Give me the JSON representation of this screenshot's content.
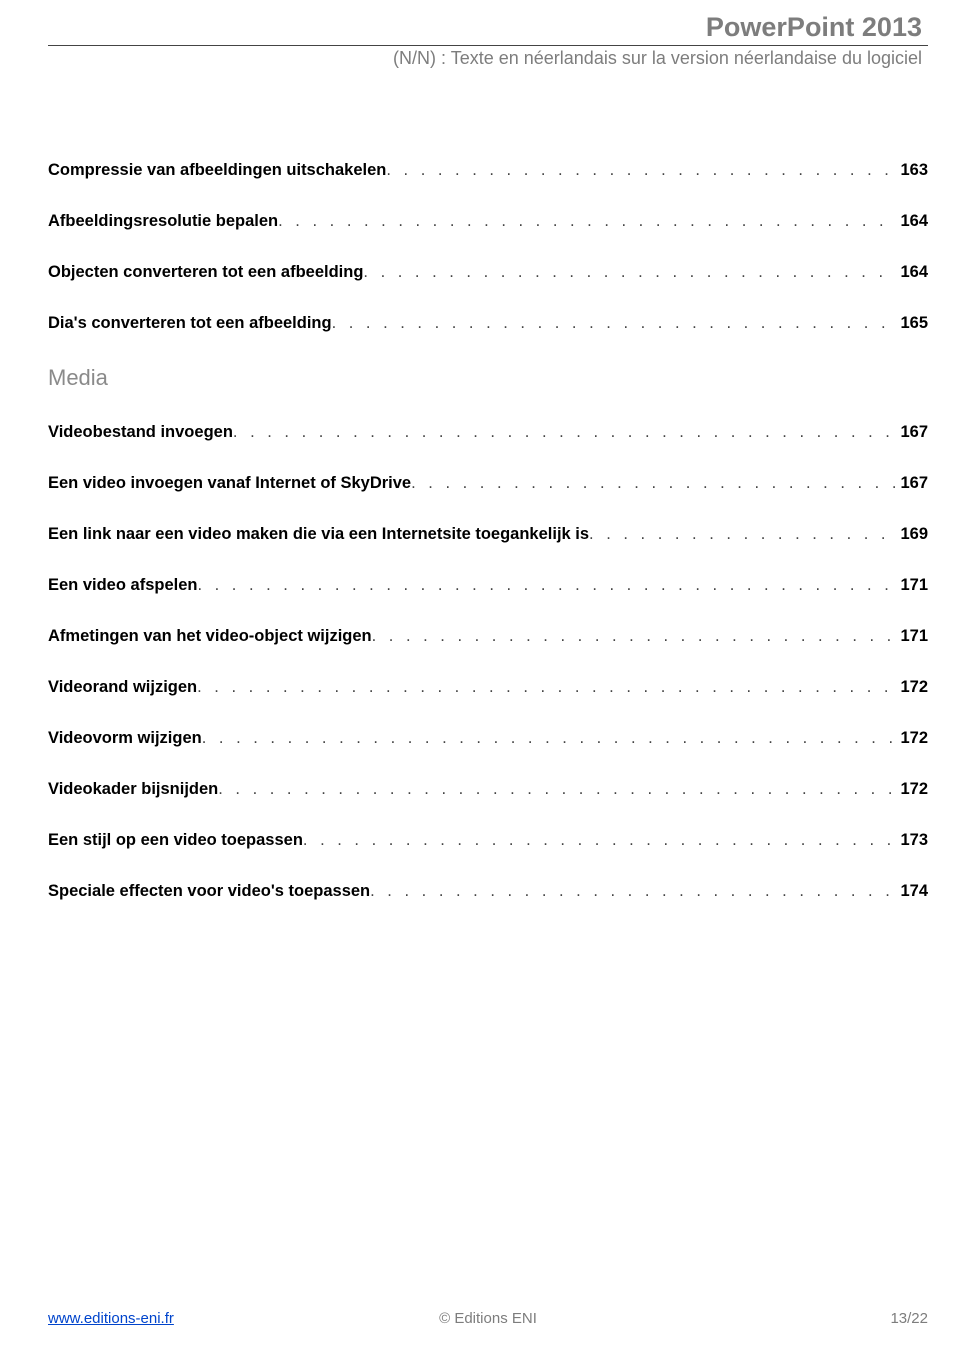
{
  "header": {
    "title": "PowerPoint 2013",
    "subtitle": "(N/N) : Texte en néerlandais sur la version néerlandaise du logiciel"
  },
  "sections": [
    {
      "heading": null,
      "entries": [
        {
          "title": "Compressie van afbeeldingen uitschakelen",
          "page": "163"
        },
        {
          "title": "Afbeeldingsresolutie bepalen",
          "page": "164"
        },
        {
          "title": "Objecten converteren tot een afbeelding",
          "page": "164"
        },
        {
          "title": "Dia's converteren tot een afbeelding",
          "page": "165"
        }
      ]
    },
    {
      "heading": "Media",
      "entries": [
        {
          "title": "Videobestand invoegen",
          "page": "167"
        },
        {
          "title": "Een video invoegen vanaf Internet of SkyDrive",
          "page": "167"
        },
        {
          "title": "Een link naar een video maken die via een Internetsite toegankelijk is",
          "page": "169"
        },
        {
          "title": "Een video afspelen",
          "page": "171"
        },
        {
          "title": "Afmetingen van het video-object wijzigen",
          "page": "171"
        },
        {
          "title": "Videorand wijzigen",
          "page": "172"
        },
        {
          "title": "Videovorm wijzigen",
          "page": "172"
        },
        {
          "title": "Videokader bijsnijden",
          "page": "172"
        },
        {
          "title": "Een stijl op een video toepassen",
          "page": "173"
        },
        {
          "title": "Speciale effecten voor video's toepassen",
          "page": "174"
        }
      ]
    }
  ],
  "footer": {
    "left": "www.editions-eni.fr",
    "center": "© Editions ENI",
    "right": "13/22"
  },
  "dots": ". . . . . . . . . . . . . . . . . . . . . . . . . . . . . . . . . . . . . . . . . . . . . . . . . . . . . . . . . . . . . . . . . . . . . . . . . . . . . . . . . . . . . . . . . . . . . . . . . . . . . . . . . . . . . . . . . . . . . . . . . . . . . . . . . . . . . ."
}
